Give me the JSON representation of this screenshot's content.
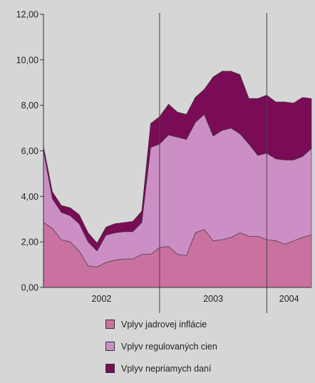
{
  "chart_data": {
    "type": "area",
    "stacked": true,
    "ylim": [
      0,
      12
    ],
    "yticks": [
      "0,00",
      "2,00",
      "4,00",
      "6,00",
      "8,00",
      "10,00",
      "12,00"
    ],
    "x_start": "2001-12",
    "x_end": "2004-06",
    "year_labels": [
      "2002",
      "2003",
      "2004"
    ],
    "year_separators": [
      "2003-01",
      "2004-01"
    ],
    "x": [
      "2001-12",
      "2002-01",
      "2002-02",
      "2002-03",
      "2002-04",
      "2002-05",
      "2002-06",
      "2002-07",
      "2002-08",
      "2002-09",
      "2002-10",
      "2002-11",
      "2002-12",
      "2003-01",
      "2003-02",
      "2003-03",
      "2003-04",
      "2003-05",
      "2003-06",
      "2003-07",
      "2003-08",
      "2003-09",
      "2003-10",
      "2003-11",
      "2003-12",
      "2004-01",
      "2004-02",
      "2004-03",
      "2004-04",
      "2004-05",
      "2004-06"
    ],
    "series": [
      {
        "name": "Vplyv jadrovej inflácie",
        "color": "#c9719f",
        "values": [
          2.85,
          2.6,
          2.1,
          2.0,
          1.6,
          0.95,
          0.9,
          1.1,
          1.2,
          1.25,
          1.25,
          1.45,
          1.45,
          1.75,
          1.8,
          1.45,
          1.4,
          2.4,
          2.55,
          2.05,
          2.1,
          2.2,
          2.4,
          2.25,
          2.25,
          2.1,
          2.05,
          1.9,
          2.05,
          2.2,
          2.3
        ]
      },
      {
        "name": "Vplyv regulovaných cien",
        "color": "#cc8fc5",
        "values": [
          3.15,
          1.3,
          1.2,
          1.15,
          1.2,
          1.05,
          0.7,
          1.2,
          1.2,
          1.2,
          1.2,
          1.4,
          4.7,
          4.55,
          4.9,
          5.15,
          5.1,
          4.85,
          5.05,
          4.6,
          4.8,
          4.8,
          4.35,
          4.05,
          3.55,
          3.8,
          3.6,
          3.7,
          3.55,
          3.55,
          3.8
        ]
      },
      {
        "name": "Vplyv nepriamych daní",
        "color": "#7a0c57",
        "values": [
          0.2,
          0.3,
          0.3,
          0.35,
          0.4,
          0.4,
          0.35,
          0.35,
          0.4,
          0.4,
          0.45,
          0.5,
          1.05,
          1.2,
          1.35,
          1.1,
          1.1,
          1.1,
          1.1,
          2.6,
          2.6,
          2.5,
          2.6,
          2.0,
          2.5,
          2.55,
          2.5,
          2.55,
          2.5,
          2.6,
          2.2
        ]
      }
    ]
  }
}
